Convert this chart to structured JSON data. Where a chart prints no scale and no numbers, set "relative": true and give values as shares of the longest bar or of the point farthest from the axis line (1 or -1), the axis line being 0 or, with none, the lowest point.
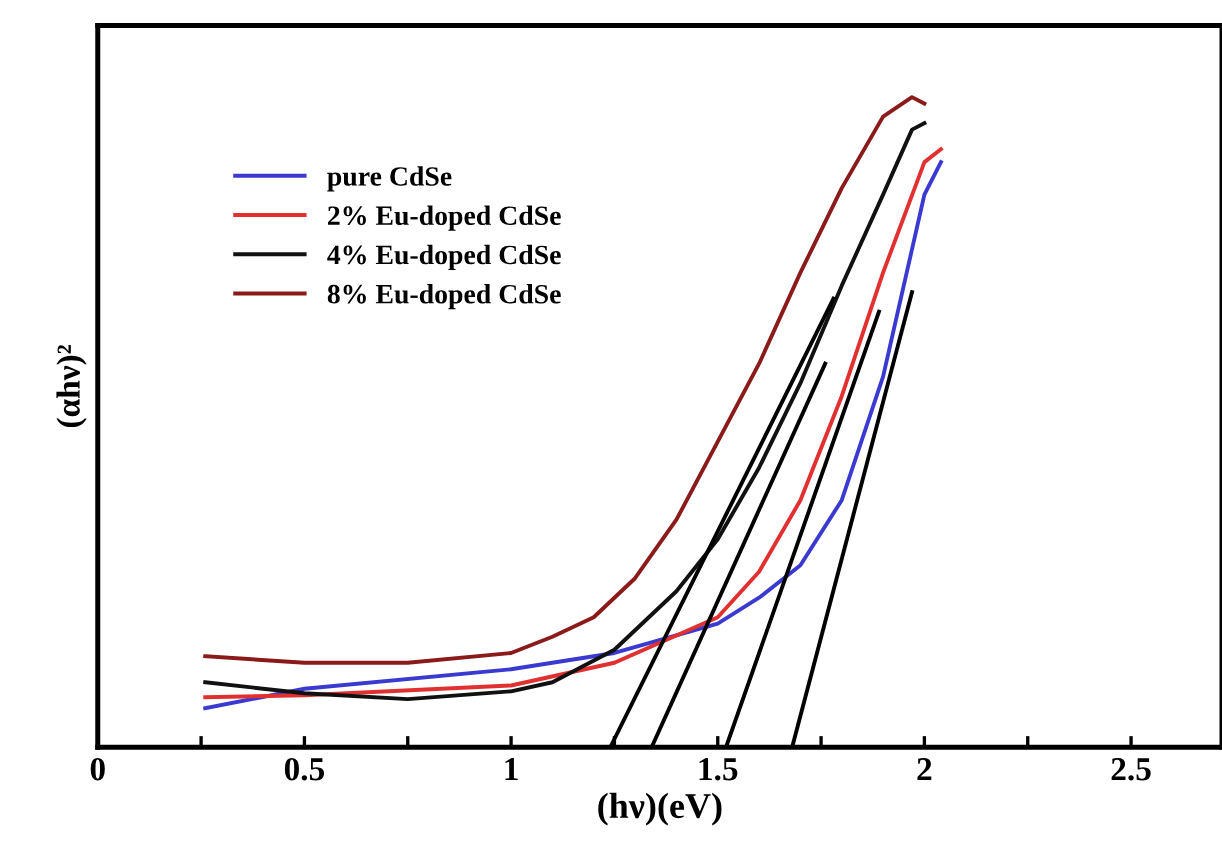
{
  "chart_data": {
    "type": "line",
    "xlabel": "(hν)(eV)",
    "ylabel": "(αhν)²",
    "relative": true,
    "xlim": [
      0,
      2.72
    ],
    "xticks": [
      0,
      {
        "value": 0.25,
        "label": null
      },
      0.5,
      {
        "value": 0.75,
        "label": null
      },
      1,
      {
        "value": 1.25,
        "label": null
      },
      1.5,
      {
        "value": 1.75,
        "label": null
      },
      2,
      {
        "value": 2.25,
        "label": null
      },
      2.5
    ],
    "legend": "top left",
    "grid": false,
    "marker": "none",
    "line_style": "solid",
    "series": [
      {
        "name": "pure CdSe",
        "color": "#3a3ad0",
        "x": [
          0.26,
          0.5,
          1.0,
          1.25,
          1.5,
          1.6,
          1.7,
          1.8,
          1.9,
          1.95,
          2.0,
          2.04
        ],
        "values": [
          0.06,
          0.09,
          0.12,
          0.145,
          0.19,
          0.23,
          0.28,
          0.38,
          0.57,
          0.71,
          0.85,
          0.9
        ]
      },
      {
        "name": "2% Eu-doped CdSe",
        "color": "#e03030",
        "x": [
          0.26,
          0.5,
          1.0,
          1.25,
          1.5,
          1.6,
          1.7,
          1.8,
          1.9,
          2.0,
          2.04
        ],
        "values": [
          0.077,
          0.08,
          0.095,
          0.13,
          0.2,
          0.27,
          0.38,
          0.54,
          0.73,
          0.9,
          0.92
        ]
      },
      {
        "name": "4% Eu-doped CdSe",
        "color": "#111111",
        "x": [
          0.26,
          0.5,
          0.75,
          1.0,
          1.1,
          1.25,
          1.4,
          1.5,
          1.6,
          1.7,
          1.8,
          1.9,
          1.97,
          2.0
        ],
        "values": [
          0.1,
          0.083,
          0.074,
          0.086,
          0.1,
          0.15,
          0.24,
          0.32,
          0.43,
          0.56,
          0.71,
          0.85,
          0.95,
          0.96
        ]
      },
      {
        "name": "8% Eu-doped CdSe",
        "color": "#8b1a1a",
        "x": [
          0.26,
          0.5,
          0.75,
          1.0,
          1.1,
          1.2,
          1.3,
          1.4,
          1.5,
          1.6,
          1.7,
          1.8,
          1.9,
          1.97,
          2.0
        ],
        "values": [
          0.14,
          0.13,
          0.13,
          0.145,
          0.17,
          0.2,
          0.26,
          0.35,
          0.47,
          0.59,
          0.73,
          0.86,
          0.97,
          1.0,
          0.99
        ]
      },
      {
        "color": "#000000",
        "x": [
          1.24,
          1.78
        ],
        "values": [
          0,
          0.69
        ]
      },
      {
        "color": "#000000",
        "x": [
          1.34,
          1.76
        ],
        "values": [
          0,
          0.59
        ]
      },
      {
        "color": "#000000",
        "x": [
          1.52,
          1.89
        ],
        "values": [
          0,
          0.67
        ]
      },
      {
        "color": "#000000",
        "x": [
          1.68,
          1.97
        ],
        "values": [
          0,
          0.7
        ]
      }
    ]
  }
}
